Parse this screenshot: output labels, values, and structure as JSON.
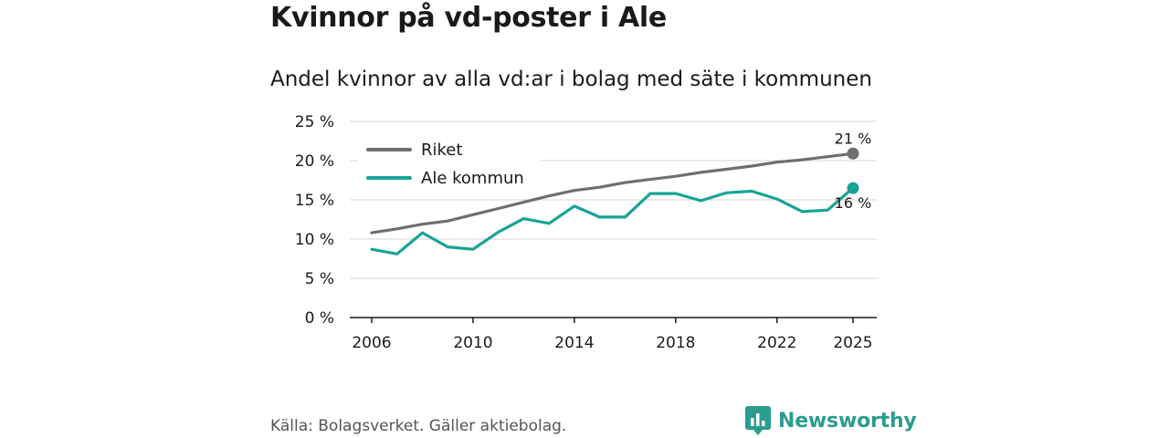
{
  "title": "Kvinnor på vd-poster i Ale",
  "subtitle": "Andel kvinnor av alla vd:ar i bolag med säte i kommunen",
  "source": "Källa: Bolagsverket. Gäller aktiebolag.",
  "brand": {
    "name": "Newsworthy",
    "logo_icon": "bar-chart-speech-icon"
  },
  "colors": {
    "riket": "#6e6e73",
    "ale": "#1aa396",
    "grid": "#d6d6d6",
    "brand": "#2a9d8f"
  },
  "chart_data": {
    "type": "line",
    "title": "Andel kvinnor av alla vd:ar i bolag med säte i kommunen",
    "xlabel": "",
    "ylabel": "",
    "x": [
      2006,
      2007,
      2008,
      2009,
      2010,
      2011,
      2012,
      2013,
      2014,
      2015,
      2016,
      2017,
      2018,
      2019,
      2020,
      2021,
      2022,
      2023,
      2024,
      2025
    ],
    "xlim": [
      2006,
      2025
    ],
    "ylim": [
      0,
      25
    ],
    "x_ticks": [
      2006,
      2010,
      2014,
      2018,
      2022,
      2025
    ],
    "y_ticks": [
      0,
      5,
      10,
      15,
      20,
      25
    ],
    "y_tick_labels": [
      "0 %",
      "5 %",
      "10 %",
      "15 %",
      "20 %",
      "25 %"
    ],
    "grid": true,
    "legend_position": "top-left",
    "series": [
      {
        "name": "Riket",
        "color": "#6e6e73",
        "values": [
          10.8,
          11.3,
          11.9,
          12.3,
          13.1,
          13.9,
          14.7,
          15.5,
          16.2,
          16.6,
          17.2,
          17.6,
          18.0,
          18.5,
          18.9,
          19.3,
          19.8,
          20.1,
          20.5,
          20.9
        ],
        "end_label": "21 %"
      },
      {
        "name": "Ale kommun",
        "color": "#1aa396",
        "values": [
          8.7,
          8.1,
          10.8,
          9.0,
          8.7,
          10.9,
          12.6,
          12.0,
          14.2,
          12.8,
          12.8,
          15.8,
          15.8,
          14.9,
          15.9,
          16.1,
          15.1,
          13.5,
          13.7,
          16.5
        ],
        "end_label": "16 %"
      }
    ]
  }
}
